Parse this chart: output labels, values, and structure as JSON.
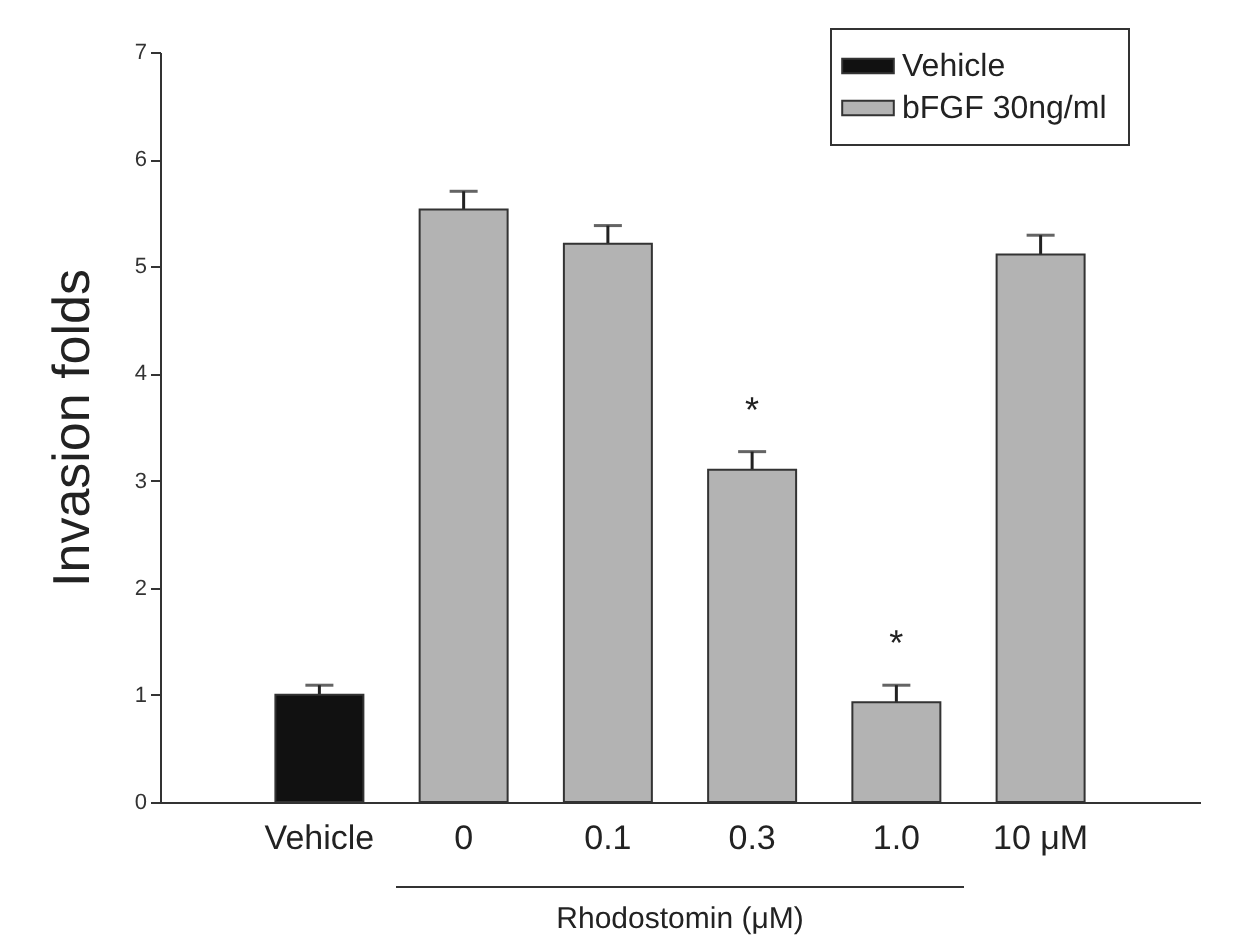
{
  "chart_data": {
    "type": "bar",
    "ylabel": "Invasion folds",
    "categories": [
      "Vehicle",
      "0",
      "0.1",
      "0.3",
      "1.0",
      "10 μM"
    ],
    "series": [
      {
        "name": "Vehicle",
        "color": "#111111",
        "values": [
          1.0,
          null,
          null,
          null,
          null,
          null
        ],
        "errors": [
          0.09,
          null,
          null,
          null,
          null,
          null
        ]
      },
      {
        "name": "bFGF 30ng/ml",
        "color": "#b3b3b3",
        "values": [
          null,
          5.53,
          5.21,
          3.1,
          0.93,
          5.11
        ],
        "errors": [
          null,
          0.17,
          0.17,
          0.17,
          0.16,
          0.18
        ]
      }
    ],
    "ylim": [
      0,
      7
    ],
    "yticks": [
      0,
      1,
      2,
      3,
      4,
      5,
      6,
      7
    ],
    "grid": false,
    "legend": "top right",
    "annotations": [
      {
        "text": "*",
        "x": "0.3",
        "y": 3.27
      },
      {
        "text": "*",
        "x": "1.0",
        "y": 1.09
      },
      "Rhodostomin (μM)"
    ]
  }
}
